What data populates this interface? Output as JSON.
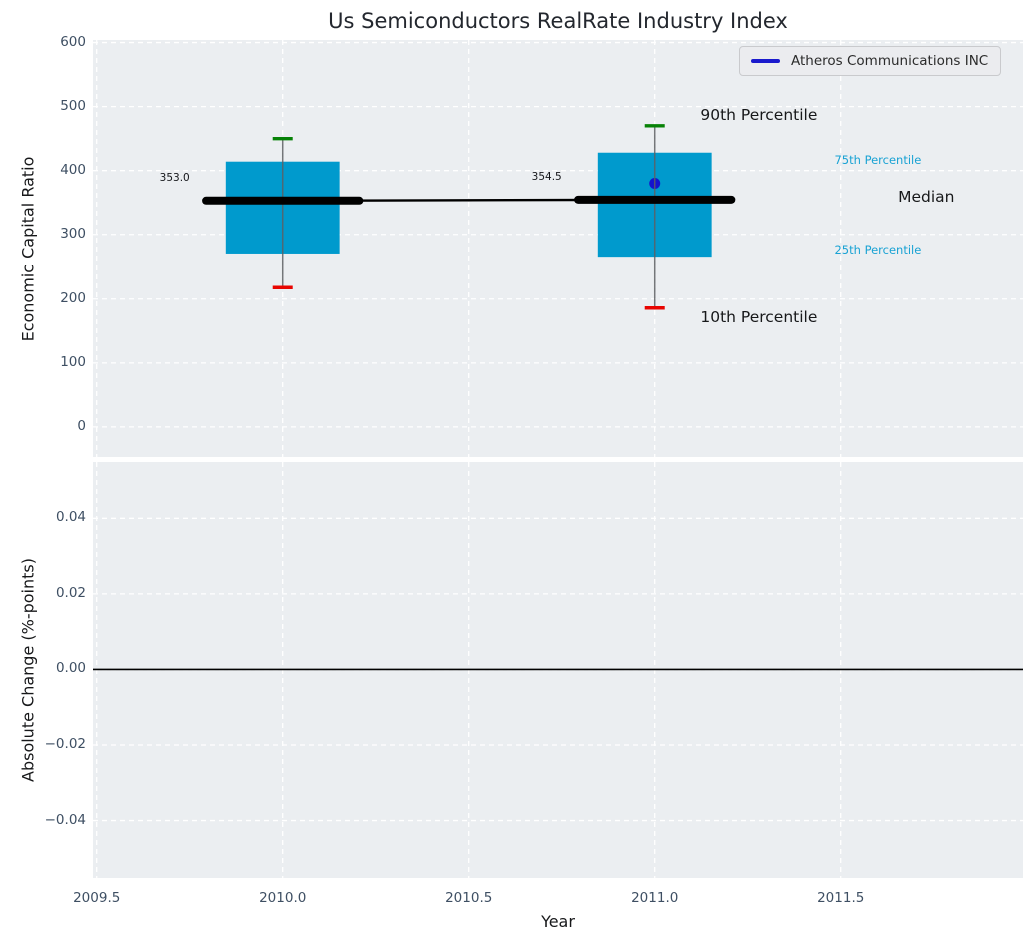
{
  "chart_data": {
    "type": "boxplot",
    "title": "Us Semiconductors RealRate Industry Index",
    "xlabel": "Year",
    "legend": {
      "label": "Atheros Communications INC",
      "position": "upper right"
    },
    "grid": "dashed-white",
    "xlim": [
      2009.49,
      2011.99
    ],
    "x_ticks": [
      {
        "v": 2009.5,
        "label": "2009.5"
      },
      {
        "v": 2010.0,
        "label": "2010.0"
      },
      {
        "v": 2010.5,
        "label": "2010.5"
      },
      {
        "v": 2011.0,
        "label": "2011.0"
      },
      {
        "v": 2011.5,
        "label": "2011.5"
      }
    ],
    "colors": {
      "box_fill": "#009acd",
      "whisker": "#5d5f63",
      "cap_high": "#078207",
      "cap_low": "#e80400",
      "median_line": "#000000",
      "company_point": "#1414cd",
      "legend_line": "#1a1acd",
      "cyan_label": "#18a2d4",
      "zero_line": "#000000",
      "axes_background": "#ebeef1"
    },
    "panels": [
      {
        "ylabel": "Economic Capital Ratio",
        "ylim": [
          -47,
          604
        ],
        "y_ticks": [
          {
            "v": 0,
            "label": "0"
          },
          {
            "v": 100,
            "label": "100"
          },
          {
            "v": 200,
            "label": "200"
          },
          {
            "v": 300,
            "label": "300"
          },
          {
            "v": 400,
            "label": "400"
          },
          {
            "v": 500,
            "label": "500"
          },
          {
            "v": 600,
            "label": "600"
          }
        ],
        "boxes": [
          {
            "x": 2010.0,
            "median": 353.0,
            "q1": 270,
            "q3": 414,
            "whisker_low": 218,
            "whisker_high": 450
          },
          {
            "x": 2011.0,
            "median": 354.5,
            "q1": 265,
            "q3": 428,
            "whisker_low": 186,
            "whisker_high": 470,
            "company_value": 380
          }
        ],
        "median_series": [
          [
            2010.0,
            353.0
          ],
          [
            2011.0,
            354.5
          ]
        ],
        "annotations": [
          {
            "text": "353.0",
            "x": 2009.75,
            "y": 388,
            "align": "right",
            "style": "value"
          },
          {
            "text": "354.5",
            "x": 2010.75,
            "y": 390,
            "align": "right",
            "style": "value"
          },
          {
            "text": "90th Percentile",
            "x": 2011.28,
            "y": 487,
            "align": "center",
            "style": "big"
          },
          {
            "text": "75th Percentile",
            "x": 2011.6,
            "y": 417,
            "align": "center",
            "style": "cyan"
          },
          {
            "text": "Median",
            "x": 2011.73,
            "y": 359,
            "align": "center",
            "style": "big"
          },
          {
            "text": "25th Percentile",
            "x": 2011.6,
            "y": 276,
            "align": "center",
            "style": "cyan"
          },
          {
            "text": "10th Percentile",
            "x": 2011.28,
            "y": 172,
            "align": "center",
            "style": "big"
          }
        ]
      },
      {
        "ylabel": "Absolute Change (%-points)",
        "ylim": [
          -0.0552,
          0.0549
        ],
        "y_ticks": [
          {
            "v": -0.04,
            "label": "−0.04"
          },
          {
            "v": -0.02,
            "label": "−0.02"
          },
          {
            "v": 0.0,
            "label": "0.00"
          },
          {
            "v": 0.02,
            "label": "0.02"
          },
          {
            "v": 0.04,
            "label": "0.04"
          }
        ],
        "zero_line": 0.0
      }
    ]
  }
}
